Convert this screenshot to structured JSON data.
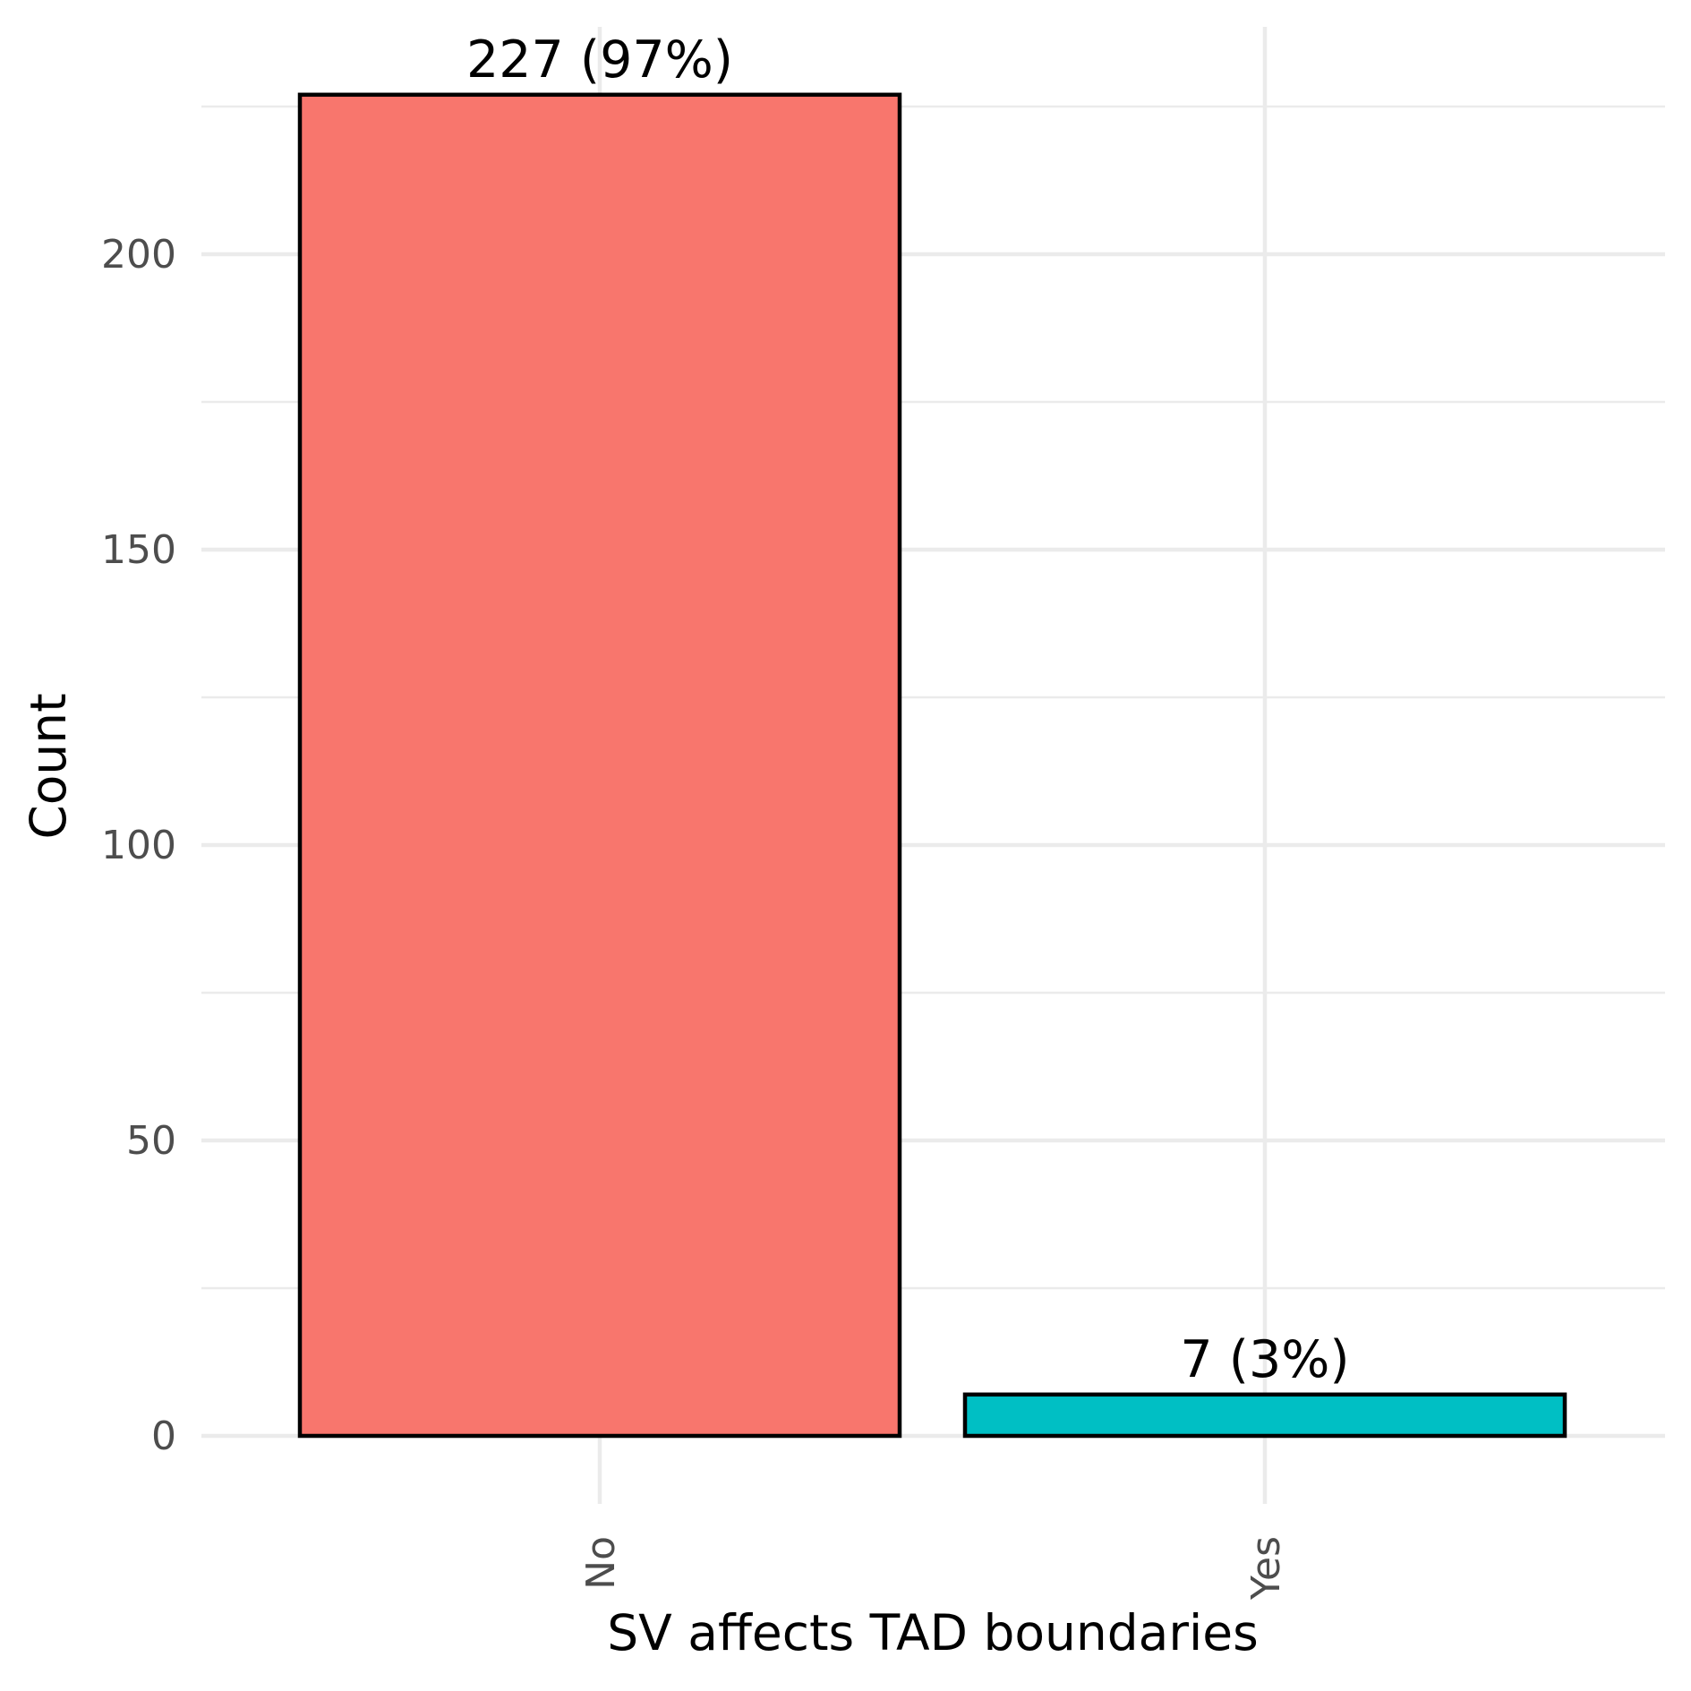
{
  "chart_data": {
    "type": "bar",
    "categories": [
      "No",
      "Yes"
    ],
    "values": [
      227,
      7
    ],
    "data_labels": [
      "227 (97%)",
      "7 (3%)"
    ],
    "colors": [
      "#F8766D",
      "#00BFC4"
    ],
    "bar_outline_color": "#000000",
    "xlabel": "SV affects TAD boundaries",
    "ylabel": "Count",
    "ylim": [
      0,
      230
    ],
    "yticks": [
      0,
      50,
      100,
      150,
      200
    ],
    "ytick_labels": [
      "0",
      "50",
      "100",
      "150",
      "200"
    ],
    "y_minor_ticks": [
      25,
      75,
      125,
      175,
      225
    ],
    "grid": true,
    "grid_color": "#ebebeb",
    "legend": "none",
    "xtick_rotation": "vertical"
  }
}
